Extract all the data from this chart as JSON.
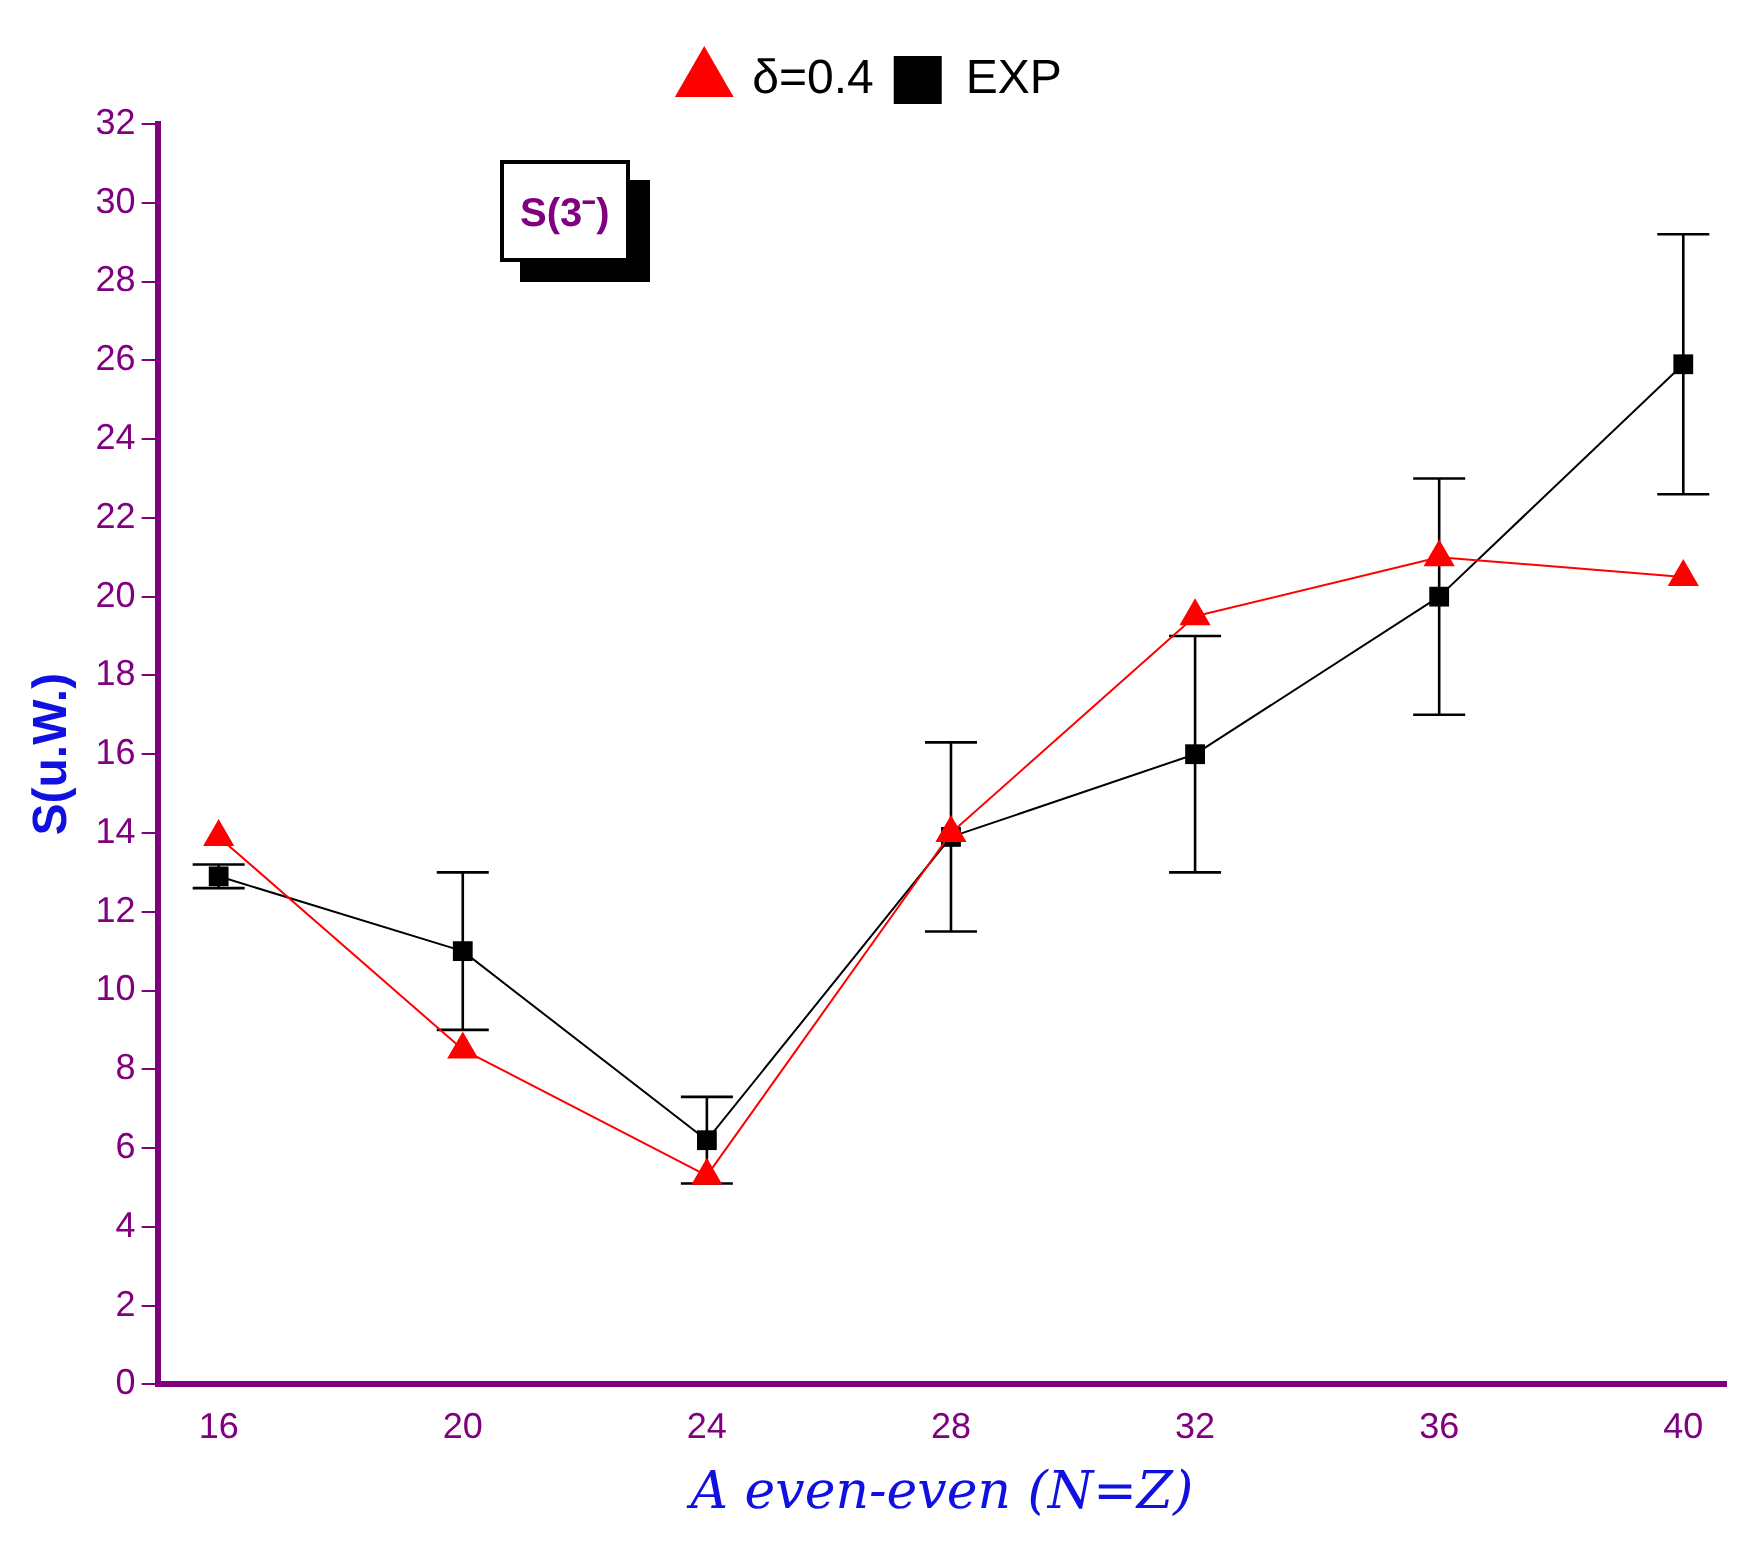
{
  "chart_data": {
    "type": "line",
    "xlabel": "A even-even (N=Z)",
    "ylabel": "S(u.W.)",
    "annotations": [
      "S(3⁻)"
    ],
    "x": [
      16,
      20,
      24,
      28,
      32,
      36,
      40
    ],
    "xlim": [
      15,
      40.7
    ],
    "xticks": [
      16,
      20,
      24,
      28,
      32,
      36,
      40
    ],
    "ylim": [
      0,
      32
    ],
    "yticks": [
      0,
      2,
      4,
      6,
      8,
      10,
      12,
      14,
      16,
      18,
      20,
      22,
      24,
      26,
      28,
      30,
      32
    ],
    "series": [
      {
        "name": "EXP",
        "color": "#000000",
        "marker": "square",
        "values": [
          12.9,
          11,
          6.2,
          13.9,
          16,
          20,
          25.9
        ],
        "errors": [
          [
            12.6,
            13.2
          ],
          [
            9,
            13
          ],
          [
            5.1,
            7.3
          ],
          [
            11.5,
            16.3
          ],
          [
            13,
            19
          ],
          [
            17,
            23
          ],
          [
            22.6,
            29.2
          ]
        ]
      },
      {
        "name": "δ=0.4",
        "color": "#ff0000",
        "marker": "triangle",
        "values": [
          13.9,
          8.5,
          5.3,
          14,
          19.5,
          21,
          20.5
        ]
      }
    ],
    "legend": "top",
    "grid": false,
    "line_style": "solid"
  }
}
